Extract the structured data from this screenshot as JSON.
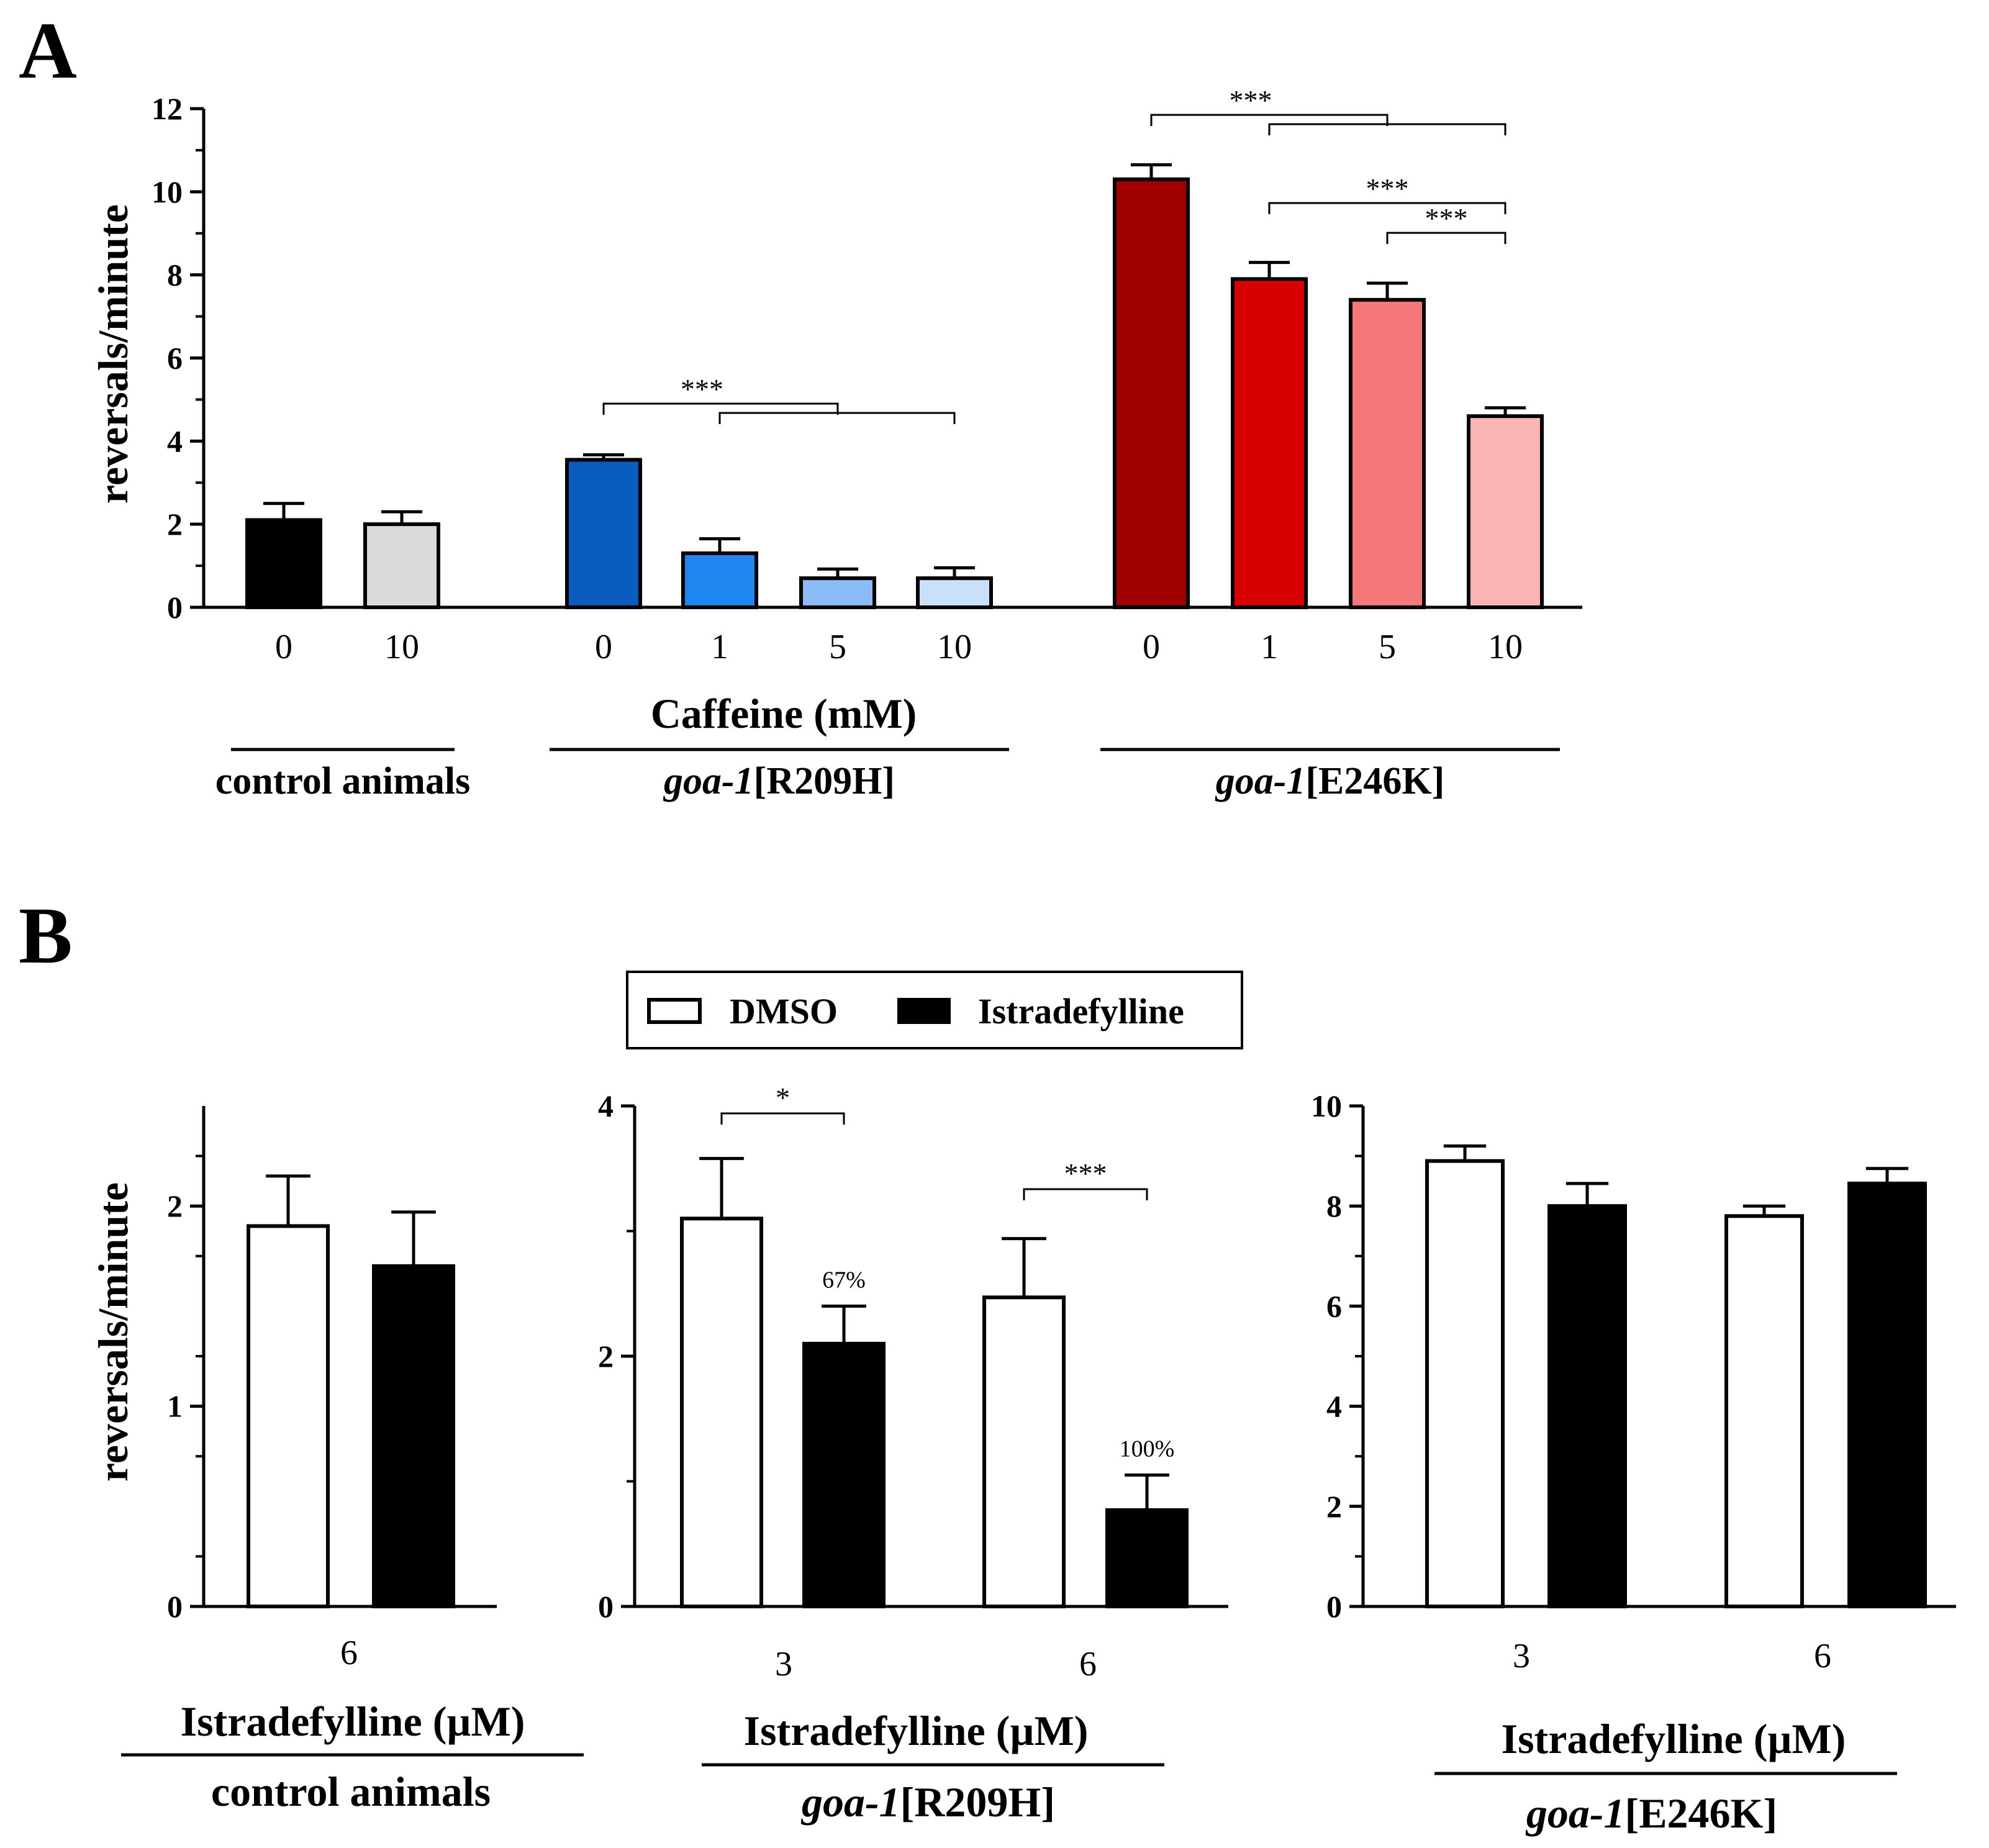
{
  "panel_a": {
    "letter": "A",
    "ylabel": "reversals/minute",
    "xlabel": "Caffeine (mM)",
    "y_ticks": [
      "0",
      "2",
      "4",
      "6",
      "8",
      "10",
      "12"
    ],
    "groups": [
      {
        "name": "control animals",
        "italic": "",
        "suffix": "control animals"
      },
      {
        "name": "goa-1[R209H]",
        "italic": "goa-1",
        "suffix": "[R209H]"
      },
      {
        "name": "goa-1[E246K]",
        "italic": "goa-1",
        "suffix": "[E246K]"
      }
    ],
    "significance": [
      "***",
      "***",
      "***",
      "***"
    ]
  },
  "panel_b": {
    "letter": "B",
    "ylabel": "reversals/minute",
    "xlabel": "Istradefylline (µM)",
    "legend": {
      "open_label": "DMSO",
      "filled_label": "Istradefylline"
    },
    "subpanels": [
      {
        "y_ticks": [
          "0",
          "1",
          "2"
        ],
        "x_ticks": [
          "6"
        ],
        "group_italic": "",
        "group_suffix": "control animals"
      },
      {
        "y_ticks": [
          "0",
          "2",
          "4"
        ],
        "x_ticks": [
          "3",
          "6"
        ],
        "group_italic": "goa-1",
        "group_suffix": "[R209H]",
        "stars": [
          "*",
          "***"
        ],
        "pcts": [
          "67%",
          "100%"
        ]
      },
      {
        "y_ticks": [
          "0",
          "2",
          "4",
          "6",
          "8",
          "10"
        ],
        "x_ticks": [
          "3",
          "6"
        ],
        "group_italic": "goa-1",
        "group_suffix": "[E246K]"
      }
    ]
  },
  "colors": {
    "control_0": "#000000",
    "control_10": "#d9d9d9",
    "r209h": [
      "#0b5cbf",
      "#1e86f0",
      "#8cbcf5",
      "#c8e0fa"
    ],
    "e246k": [
      "#a00000",
      "#d90000",
      "#f57878",
      "#fbb5b5"
    ]
  },
  "chart_data": [
    {
      "type": "bar",
      "title": "",
      "xlabel": "Caffeine (mM)",
      "ylabel": "reversals/minute",
      "ylim": [
        0,
        12
      ],
      "categories": [
        "0",
        "10",
        "0",
        "1",
        "5",
        "10",
        "0",
        "1",
        "5",
        "10"
      ],
      "category_groups": [
        "control animals",
        "control animals",
        "goa-1[R209H]",
        "goa-1[R209H]",
        "goa-1[R209H]",
        "goa-1[R209H]",
        "goa-1[E246K]",
        "goa-1[E246K]",
        "goa-1[E246K]",
        "goa-1[E246K]"
      ],
      "values": [
        2.1,
        2.0,
        3.55,
        1.3,
        0.7,
        0.7,
        10.3,
        7.9,
        7.4,
        4.6
      ],
      "errors": [
        0.4,
        0.3,
        0.12,
        0.35,
        0.22,
        0.25,
        0.35,
        0.4,
        0.4,
        0.2
      ],
      "comparisons": [
        {
          "group": "goa-1[R209H]",
          "from": "0",
          "to": [
            "5",
            "10"
          ],
          "label": "***"
        },
        {
          "group": "goa-1[E246K]",
          "from": "0",
          "to": [
            "5",
            "10"
          ],
          "label": "***"
        },
        {
          "group": "goa-1[E246K]",
          "from": "1",
          "to": [
            "10"
          ],
          "label": "***"
        },
        {
          "group": "goa-1[E246K]",
          "from": "5",
          "to": [
            "10"
          ],
          "label": "***"
        }
      ]
    },
    {
      "type": "bar",
      "title": "",
      "group": "control animals",
      "xlabel": "Istradefylline (µM)",
      "ylabel": "reversals/minute",
      "ylim": [
        0,
        2.5
      ],
      "categories": [
        "6"
      ],
      "series": [
        {
          "name": "DMSO",
          "values": [
            1.9
          ],
          "errors": [
            0.25
          ]
        },
        {
          "name": "Istradefylline",
          "values": [
            1.7
          ],
          "errors": [
            0.27
          ]
        }
      ]
    },
    {
      "type": "bar",
      "title": "",
      "group": "goa-1[R209H]",
      "xlabel": "Istradefylline (µM)",
      "ylim": [
        0,
        4
      ],
      "categories": [
        "3",
        "6"
      ],
      "series": [
        {
          "name": "DMSO",
          "values": [
            3.1,
            2.47
          ],
          "errors": [
            0.48,
            0.47
          ]
        },
        {
          "name": "Istradefylline",
          "values": [
            2.1,
            0.77
          ],
          "errors": [
            0.3,
            0.28
          ]
        }
      ],
      "annotations": [
        {
          "category": "3",
          "label": "*"
        },
        {
          "category": "6",
          "label": "***"
        },
        {
          "category": "3",
          "series": "Istradefylline",
          "label": "67%"
        },
        {
          "category": "6",
          "series": "Istradefylline",
          "label": "100%"
        }
      ]
    },
    {
      "type": "bar",
      "title": "",
      "group": "goa-1[E246K]",
      "xlabel": "Istradefylline (µM)",
      "ylim": [
        0,
        10
      ],
      "categories": [
        "3",
        "6"
      ],
      "series": [
        {
          "name": "DMSO",
          "values": [
            8.9,
            7.8
          ],
          "errors": [
            0.3,
            0.2
          ]
        },
        {
          "name": "Istradefylline",
          "values": [
            8.0,
            8.45
          ],
          "errors": [
            0.45,
            0.3
          ]
        }
      ]
    }
  ]
}
